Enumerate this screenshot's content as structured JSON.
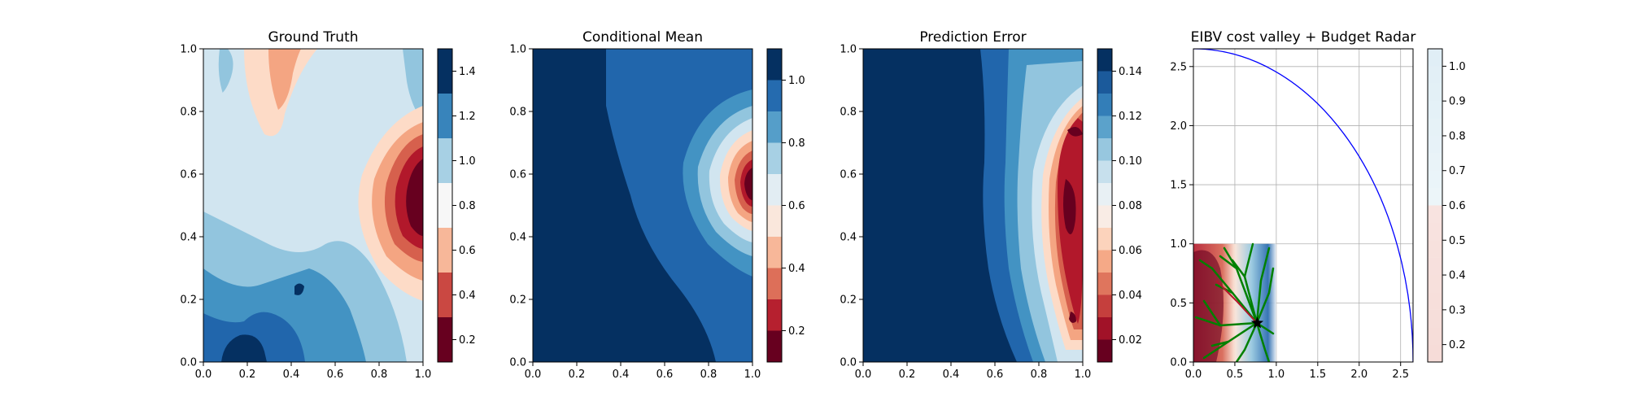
{
  "chart_data": [
    {
      "type": "contour",
      "title": "Ground Truth",
      "xlim": [
        0,
        1
      ],
      "ylim": [
        0,
        1
      ],
      "xticks": [
        0.0,
        0.2,
        0.4,
        0.6,
        0.8,
        1.0
      ],
      "yticks": [
        0.0,
        0.2,
        0.4,
        0.6,
        0.8,
        1.0
      ],
      "xtick_labels": [
        "0.0",
        "0.2",
        "0.4",
        "0.6",
        "0.8",
        "1.0"
      ],
      "ytick_labels": [
        "0.0",
        "0.2",
        "0.4",
        "0.6",
        "0.8",
        "1.0"
      ],
      "colorbar": {
        "colormap": "RdBu",
        "range": [
          0.1,
          1.5
        ],
        "levels": [
          0.1,
          0.3,
          0.5,
          0.7,
          0.9,
          1.1,
          1.3,
          1.5
        ],
        "ticks": [
          0.2,
          0.4,
          0.6,
          0.8,
          1.0,
          1.2,
          1.4
        ],
        "tick_labels": [
          "0.2",
          "0.4",
          "0.6",
          "0.8",
          "1.0",
          "1.2",
          "1.4"
        ]
      }
    },
    {
      "type": "contour",
      "title": "Conditional Mean",
      "xlim": [
        0,
        1
      ],
      "ylim": [
        0,
        1
      ],
      "xticks": [
        0.0,
        0.2,
        0.4,
        0.6,
        0.8,
        1.0
      ],
      "yticks": [
        0.0,
        0.2,
        0.4,
        0.6,
        0.8,
        1.0
      ],
      "xtick_labels": [
        "0.0",
        "0.2",
        "0.4",
        "0.6",
        "0.8",
        "1.0"
      ],
      "ytick_labels": [
        "0.0",
        "0.2",
        "0.4",
        "0.6",
        "0.8",
        "1.0"
      ],
      "colorbar": {
        "colormap": "RdBu",
        "range": [
          0.1,
          1.1
        ],
        "levels": [
          0.1,
          0.2,
          0.3,
          0.4,
          0.5,
          0.6,
          0.7,
          0.8,
          0.9,
          1.0,
          1.1
        ],
        "ticks": [
          0.2,
          0.4,
          0.6,
          0.8,
          1.0
        ],
        "tick_labels": [
          "0.2",
          "0.4",
          "0.6",
          "0.8",
          "1.0"
        ]
      }
    },
    {
      "type": "contour",
      "title": "Prediction Error",
      "xlim": [
        0,
        1
      ],
      "ylim": [
        0,
        1
      ],
      "xticks": [
        0.0,
        0.2,
        0.4,
        0.6,
        0.8,
        1.0
      ],
      "yticks": [
        0.0,
        0.2,
        0.4,
        0.6,
        0.8,
        1.0
      ],
      "xtick_labels": [
        "0.0",
        "0.2",
        "0.4",
        "0.6",
        "0.8",
        "1.0"
      ],
      "ytick_labels": [
        "0.0",
        "0.2",
        "0.4",
        "0.6",
        "0.8",
        "1.0"
      ],
      "colorbar": {
        "colormap": "RdBu",
        "range": [
          0.01,
          0.15
        ],
        "levels": [
          0.01,
          0.02,
          0.03,
          0.04,
          0.05,
          0.06,
          0.07,
          0.08,
          0.09,
          0.1,
          0.11,
          0.12,
          0.13,
          0.14,
          0.15
        ],
        "ticks": [
          0.02,
          0.04,
          0.06,
          0.08,
          0.1,
          0.12,
          0.14
        ],
        "tick_labels": [
          "0.02",
          "0.04",
          "0.06",
          "0.08",
          "0.10",
          "0.12",
          "0.14"
        ]
      }
    },
    {
      "type": "contour",
      "title": "EIBV cost valley + Budget Radar",
      "xlim": [
        0,
        2.65
      ],
      "ylim": [
        0,
        2.65
      ],
      "grid": true,
      "xticks": [
        0.0,
        0.5,
        1.0,
        1.5,
        2.0,
        2.5
      ],
      "yticks": [
        0.0,
        0.5,
        1.0,
        1.5,
        2.0,
        2.5
      ],
      "xtick_labels": [
        "0.0",
        "0.5",
        "1.0",
        "1.5",
        "2.0",
        "2.5"
      ],
      "ytick_labels": [
        "0.0",
        "0.5",
        "1.0",
        "1.5",
        "2.0",
        "2.5"
      ],
      "field_extent": [
        0,
        1,
        0,
        1
      ],
      "budget_radar": {
        "center": [
          0,
          0
        ],
        "radius": 2.65,
        "color": "#0000ff"
      },
      "current_location": [
        0.77,
        0.33
      ],
      "path_color": "#008000",
      "colorbar": {
        "colormap": "RdBu",
        "range": [
          0.15,
          1.05
        ],
        "levels": [
          0.15,
          0.2,
          0.25,
          0.3,
          0.35,
          0.4,
          0.45,
          0.5,
          0.55,
          0.6,
          0.65,
          0.7,
          0.75,
          0.8,
          0.85,
          0.9,
          0.95,
          1.0,
          1.05
        ],
        "ticks": [
          0.2,
          0.3,
          0.4,
          0.5,
          0.6,
          0.7,
          0.8,
          0.9,
          1.0
        ],
        "tick_labels": [
          "0.2",
          "0.3",
          "0.4",
          "0.5",
          "0.6",
          "0.7",
          "0.8",
          "0.9",
          "1.0"
        ]
      }
    }
  ]
}
